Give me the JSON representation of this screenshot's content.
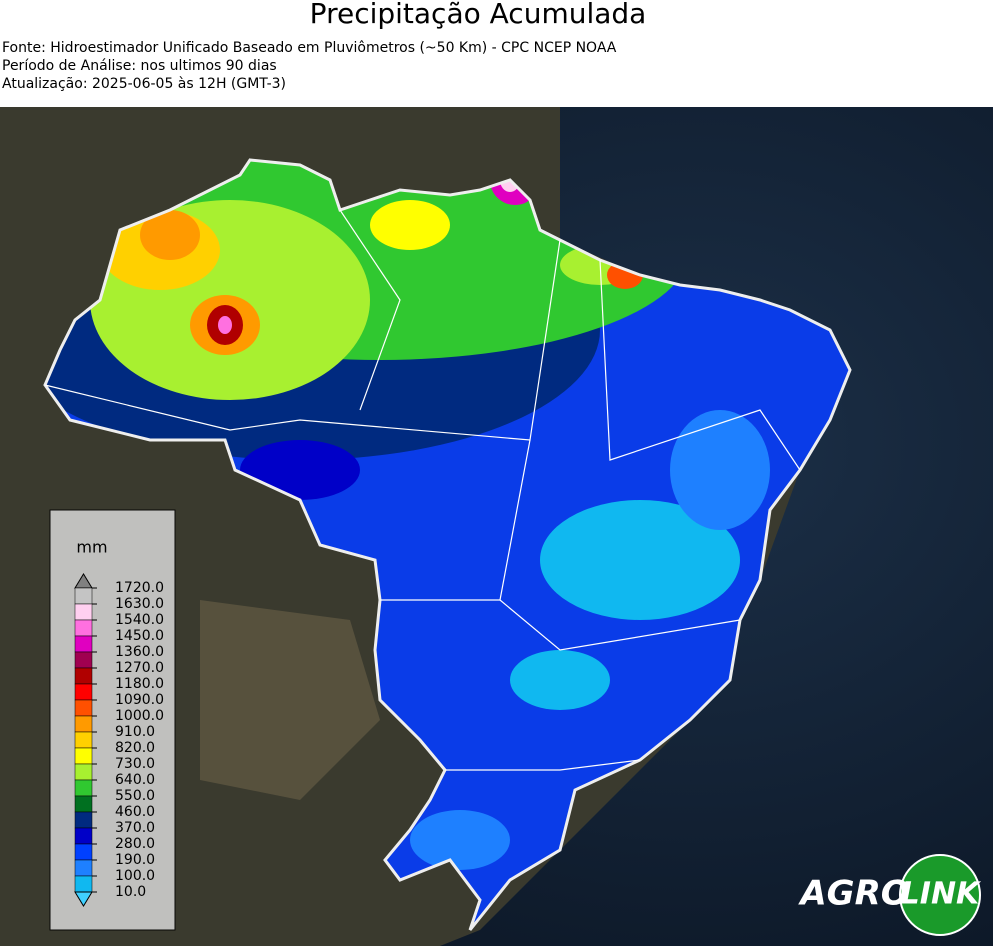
{
  "header": {
    "title": "Precipitação Acumulada",
    "lines": [
      "Fonte: Hidroestimador Unificado Baseado em Pluviômetros (~50 Km) - CPC NCEP NOAA",
      "Período de Análise: nos ultimos 90 dias",
      "Atualização: 2025-06-05 às 12H (GMT-3)"
    ]
  },
  "legend": {
    "unit": "mm",
    "labels": [
      "1720.0",
      "1630.0",
      "1540.0",
      "1450.0",
      "1360.0",
      "1270.0",
      "1180.0",
      "1090.0",
      "1000.0",
      "910.0",
      "820.0",
      "730.0",
      "640.0",
      "550.0",
      "460.0",
      "370.0",
      "280.0",
      "190.0",
      "100.0",
      "10.0"
    ],
    "colors": [
      "#808080",
      "#c4c4c4",
      "#ffd0f0",
      "#ff70e0",
      "#e000c0",
      "#a00050",
      "#b00000",
      "#ff0000",
      "#ff5000",
      "#ff9a00",
      "#ffd000",
      "#ffff00",
      "#a8f030",
      "#30c830",
      "#007020",
      "#002a80",
      "#0000c8",
      "#0040ff",
      "#1e80ff",
      "#10b8f0",
      "#40d0ff"
    ]
  },
  "logo": {
    "left": "AGRO",
    "right": "LINK"
  }
}
